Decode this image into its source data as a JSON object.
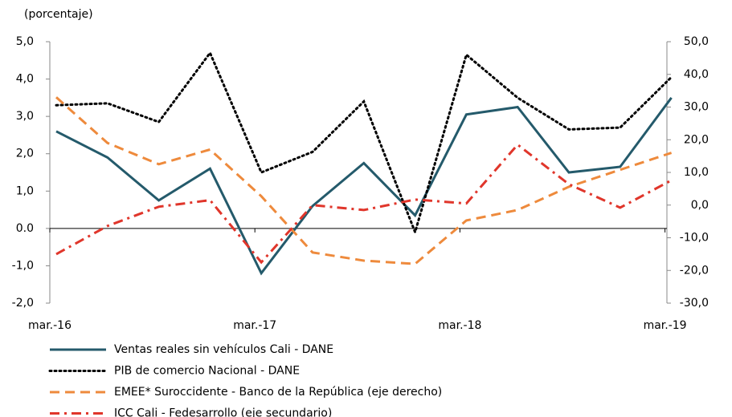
{
  "chart_data": {
    "type": "line",
    "y_label": "(porcentaje)",
    "categories": [
      "mar.-16",
      null,
      null,
      null,
      "mar.-17",
      null,
      null,
      null,
      "mar.-18",
      null,
      null,
      null,
      "mar.-19"
    ],
    "ylim": [
      -2,
      5
    ],
    "yticks": [
      {
        "value": -2,
        "label": "-2,0"
      },
      {
        "value": -1,
        "label": "-1,0"
      },
      {
        "value": 0,
        "label": "0.0"
      },
      {
        "value": 1,
        "label": "1,0"
      },
      {
        "value": 2,
        "label": "2,0"
      },
      {
        "value": 3,
        "label": "3,0"
      },
      {
        "value": 4,
        "label": "4,0"
      },
      {
        "value": 5,
        "label": "5,0"
      }
    ],
    "y2lim": [
      -30,
      50
    ],
    "y2ticks": [
      {
        "value": -30,
        "label": "-30,0"
      },
      {
        "value": -20,
        "label": "-20,0"
      },
      {
        "value": -10,
        "label": "-10,0"
      },
      {
        "value": 0,
        "label": "0,0"
      },
      {
        "value": 10,
        "label": "10,0"
      },
      {
        "value": 20,
        "label": "20,0"
      },
      {
        "value": 30,
        "label": "30,0"
      },
      {
        "value": 40,
        "label": "40,0"
      },
      {
        "value": 50,
        "label": "50,0"
      }
    ],
    "series": [
      {
        "name": "Ventas reales sin vehículos Cali - DANE",
        "color": "#245a6b",
        "style": "solid",
        "values": [
          2.6,
          1.9,
          0.75,
          1.6,
          -1.2,
          0.6,
          1.75,
          0.35,
          3.05,
          3.25,
          1.5,
          1.65,
          3.5
        ]
      },
      {
        "name": "PIB de comercio Nacional - DANE",
        "color": "#000000",
        "style": "dotted",
        "values": [
          3.3,
          3.35,
          2.85,
          4.7,
          1.5,
          2.05,
          3.4,
          -0.1,
          4.65,
          3.5,
          2.65,
          2.7,
          4.05
        ]
      },
      {
        "name": "EMEE* Suroccidente - Banco de la República (eje derecho)",
        "color": "#ee8a3c",
        "style": "dashed",
        "axis": "y2",
        "values": [
          33,
          19,
          12.5,
          17,
          2.7,
          -14.5,
          -17,
          -18,
          -4.7,
          -1.5,
          5.6,
          10.8,
          16
        ]
      },
      {
        "name": "ICC Cali - Fedesarrollo (eje secundario)",
        "color": "#e0362b",
        "style": "dashdot",
        "axis": "y2",
        "values": [
          -15,
          -6.4,
          -0.5,
          1.5,
          -17.5,
          0,
          -1.5,
          1.7,
          0.5,
          18.5,
          6.4,
          -0.8,
          7.6
        ]
      }
    ]
  }
}
